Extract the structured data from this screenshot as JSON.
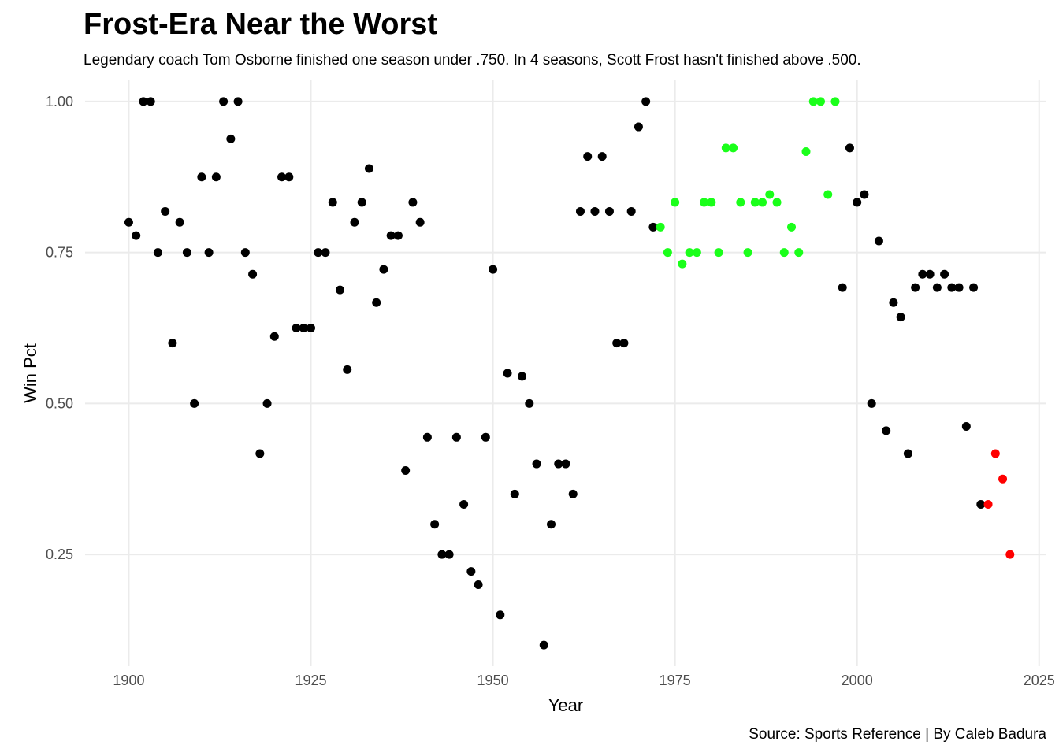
{
  "chart_data": {
    "type": "scatter",
    "title": "Frost-Era Near the Worst",
    "subtitle": "Legendary coach Tom Osborne finished one season under .750.  In 4 seasons, Scott Frost hasn't finished above .500.",
    "caption": "Source: Sports Reference | By Caleb Badura",
    "xlabel": "Year",
    "ylabel": "Win Pct",
    "xlim": [
      1894,
      2026
    ],
    "ylim": [
      0.065,
      1.035
    ],
    "xticks": [
      "1900",
      "1925",
      "1950",
      "1975",
      "2000",
      "2025"
    ],
    "yticks": [
      "0.25",
      "0.50",
      "0.75",
      "1.00"
    ],
    "grid": true,
    "colors": {
      "other": "#000000",
      "osborne": "#1aff1a",
      "frost": "#ff0000"
    },
    "points": [
      {
        "x": 1900,
        "y": 0.8,
        "g": "other"
      },
      {
        "x": 1901,
        "y": 0.778,
        "g": "other"
      },
      {
        "x": 1902,
        "y": 1.0,
        "g": "other"
      },
      {
        "x": 1903,
        "y": 1.0,
        "g": "other"
      },
      {
        "x": 1904,
        "y": 0.75,
        "g": "other"
      },
      {
        "x": 1905,
        "y": 0.818,
        "g": "other"
      },
      {
        "x": 1906,
        "y": 0.6,
        "g": "other"
      },
      {
        "x": 1907,
        "y": 0.8,
        "g": "other"
      },
      {
        "x": 1908,
        "y": 0.75,
        "g": "other"
      },
      {
        "x": 1909,
        "y": 0.5,
        "g": "other"
      },
      {
        "x": 1910,
        "y": 0.875,
        "g": "other"
      },
      {
        "x": 1911,
        "y": 0.75,
        "g": "other"
      },
      {
        "x": 1912,
        "y": 0.875,
        "g": "other"
      },
      {
        "x": 1913,
        "y": 1.0,
        "g": "other"
      },
      {
        "x": 1914,
        "y": 0.938,
        "g": "other"
      },
      {
        "x": 1915,
        "y": 1.0,
        "g": "other"
      },
      {
        "x": 1916,
        "y": 0.75,
        "g": "other"
      },
      {
        "x": 1917,
        "y": 0.714,
        "g": "other"
      },
      {
        "x": 1918,
        "y": 0.417,
        "g": "other"
      },
      {
        "x": 1919,
        "y": 0.5,
        "g": "other"
      },
      {
        "x": 1920,
        "y": 0.611,
        "g": "other"
      },
      {
        "x": 1921,
        "y": 0.875,
        "g": "other"
      },
      {
        "x": 1922,
        "y": 0.875,
        "g": "other"
      },
      {
        "x": 1923,
        "y": 0.625,
        "g": "other"
      },
      {
        "x": 1924,
        "y": 0.625,
        "g": "other"
      },
      {
        "x": 1925,
        "y": 0.625,
        "g": "other"
      },
      {
        "x": 1926,
        "y": 0.75,
        "g": "other"
      },
      {
        "x": 1927,
        "y": 0.75,
        "g": "other"
      },
      {
        "x": 1928,
        "y": 0.833,
        "g": "other"
      },
      {
        "x": 1929,
        "y": 0.688,
        "g": "other"
      },
      {
        "x": 1930,
        "y": 0.556,
        "g": "other"
      },
      {
        "x": 1931,
        "y": 0.8,
        "g": "other"
      },
      {
        "x": 1932,
        "y": 0.833,
        "g": "other"
      },
      {
        "x": 1933,
        "y": 0.889,
        "g": "other"
      },
      {
        "x": 1934,
        "y": 0.667,
        "g": "other"
      },
      {
        "x": 1935,
        "y": 0.722,
        "g": "other"
      },
      {
        "x": 1936,
        "y": 0.778,
        "g": "other"
      },
      {
        "x": 1937,
        "y": 0.778,
        "g": "other"
      },
      {
        "x": 1938,
        "y": 0.389,
        "g": "other"
      },
      {
        "x": 1939,
        "y": 0.833,
        "g": "other"
      },
      {
        "x": 1940,
        "y": 0.8,
        "g": "other"
      },
      {
        "x": 1941,
        "y": 0.444,
        "g": "other"
      },
      {
        "x": 1942,
        "y": 0.3,
        "g": "other"
      },
      {
        "x": 1943,
        "y": 0.25,
        "g": "other"
      },
      {
        "x": 1944,
        "y": 0.25,
        "g": "other"
      },
      {
        "x": 1945,
        "y": 0.444,
        "g": "other"
      },
      {
        "x": 1946,
        "y": 0.333,
        "g": "other"
      },
      {
        "x": 1947,
        "y": 0.222,
        "g": "other"
      },
      {
        "x": 1948,
        "y": 0.2,
        "g": "other"
      },
      {
        "x": 1949,
        "y": 0.444,
        "g": "other"
      },
      {
        "x": 1950,
        "y": 0.722,
        "g": "other"
      },
      {
        "x": 1951,
        "y": 0.15,
        "g": "other"
      },
      {
        "x": 1952,
        "y": 0.55,
        "g": "other"
      },
      {
        "x": 1953,
        "y": 0.35,
        "g": "other"
      },
      {
        "x": 1954,
        "y": 0.545,
        "g": "other"
      },
      {
        "x": 1955,
        "y": 0.5,
        "g": "other"
      },
      {
        "x": 1956,
        "y": 0.4,
        "g": "other"
      },
      {
        "x": 1957,
        "y": 0.1,
        "g": "other"
      },
      {
        "x": 1958,
        "y": 0.3,
        "g": "other"
      },
      {
        "x": 1959,
        "y": 0.4,
        "g": "other"
      },
      {
        "x": 1960,
        "y": 0.4,
        "g": "other"
      },
      {
        "x": 1961,
        "y": 0.35,
        "g": "other"
      },
      {
        "x": 1962,
        "y": 0.818,
        "g": "other"
      },
      {
        "x": 1963,
        "y": 0.909,
        "g": "other"
      },
      {
        "x": 1964,
        "y": 0.818,
        "g": "other"
      },
      {
        "x": 1965,
        "y": 0.909,
        "g": "other"
      },
      {
        "x": 1966,
        "y": 0.818,
        "g": "other"
      },
      {
        "x": 1967,
        "y": 0.6,
        "g": "other"
      },
      {
        "x": 1968,
        "y": 0.6,
        "g": "other"
      },
      {
        "x": 1969,
        "y": 0.818,
        "g": "other"
      },
      {
        "x": 1970,
        "y": 0.958,
        "g": "other"
      },
      {
        "x": 1971,
        "y": 1.0,
        "g": "other"
      },
      {
        "x": 1972,
        "y": 0.792,
        "g": "other"
      },
      {
        "x": 1973,
        "y": 0.792,
        "g": "osborne"
      },
      {
        "x": 1974,
        "y": 0.75,
        "g": "osborne"
      },
      {
        "x": 1975,
        "y": 0.833,
        "g": "osborne"
      },
      {
        "x": 1976,
        "y": 0.731,
        "g": "osborne"
      },
      {
        "x": 1977,
        "y": 0.75,
        "g": "osborne"
      },
      {
        "x": 1978,
        "y": 0.75,
        "g": "osborne"
      },
      {
        "x": 1979,
        "y": 0.833,
        "g": "osborne"
      },
      {
        "x": 1980,
        "y": 0.833,
        "g": "osborne"
      },
      {
        "x": 1981,
        "y": 0.75,
        "g": "osborne"
      },
      {
        "x": 1982,
        "y": 0.923,
        "g": "osborne"
      },
      {
        "x": 1983,
        "y": 0.923,
        "g": "osborne"
      },
      {
        "x": 1984,
        "y": 0.833,
        "g": "osborne"
      },
      {
        "x": 1985,
        "y": 0.75,
        "g": "osborne"
      },
      {
        "x": 1986,
        "y": 0.833,
        "g": "osborne"
      },
      {
        "x": 1987,
        "y": 0.833,
        "g": "osborne"
      },
      {
        "x": 1988,
        "y": 0.846,
        "g": "osborne"
      },
      {
        "x": 1989,
        "y": 0.833,
        "g": "osborne"
      },
      {
        "x": 1990,
        "y": 0.75,
        "g": "osborne"
      },
      {
        "x": 1991,
        "y": 0.792,
        "g": "osborne"
      },
      {
        "x": 1992,
        "y": 0.75,
        "g": "osborne"
      },
      {
        "x": 1993,
        "y": 0.917,
        "g": "osborne"
      },
      {
        "x": 1994,
        "y": 1.0,
        "g": "osborne"
      },
      {
        "x": 1995,
        "y": 1.0,
        "g": "osborne"
      },
      {
        "x": 1996,
        "y": 0.846,
        "g": "osborne"
      },
      {
        "x": 1997,
        "y": 1.0,
        "g": "osborne"
      },
      {
        "x": 1998,
        "y": 0.692,
        "g": "other"
      },
      {
        "x": 1999,
        "y": 0.923,
        "g": "other"
      },
      {
        "x": 2000,
        "y": 0.833,
        "g": "other"
      },
      {
        "x": 2001,
        "y": 0.846,
        "g": "other"
      },
      {
        "x": 2002,
        "y": 0.5,
        "g": "other"
      },
      {
        "x": 2003,
        "y": 0.769,
        "g": "other"
      },
      {
        "x": 2004,
        "y": 0.455,
        "g": "other"
      },
      {
        "x": 2005,
        "y": 0.667,
        "g": "other"
      },
      {
        "x": 2006,
        "y": 0.643,
        "g": "other"
      },
      {
        "x": 2007,
        "y": 0.417,
        "g": "other"
      },
      {
        "x": 2008,
        "y": 0.692,
        "g": "other"
      },
      {
        "x": 2009,
        "y": 0.714,
        "g": "other"
      },
      {
        "x": 2010,
        "y": 0.714,
        "g": "other"
      },
      {
        "x": 2011,
        "y": 0.692,
        "g": "other"
      },
      {
        "x": 2012,
        "y": 0.714,
        "g": "other"
      },
      {
        "x": 2013,
        "y": 0.692,
        "g": "other"
      },
      {
        "x": 2014,
        "y": 0.692,
        "g": "other"
      },
      {
        "x": 2015,
        "y": 0.462,
        "g": "other"
      },
      {
        "x": 2016,
        "y": 0.692,
        "g": "other"
      },
      {
        "x": 2017,
        "y": 0.333,
        "g": "other"
      },
      {
        "x": 2018,
        "y": 0.333,
        "g": "frost"
      },
      {
        "x": 2019,
        "y": 0.417,
        "g": "frost"
      },
      {
        "x": 2020,
        "y": 0.375,
        "g": "frost"
      },
      {
        "x": 2021,
        "y": 0.25,
        "g": "frost"
      }
    ]
  }
}
